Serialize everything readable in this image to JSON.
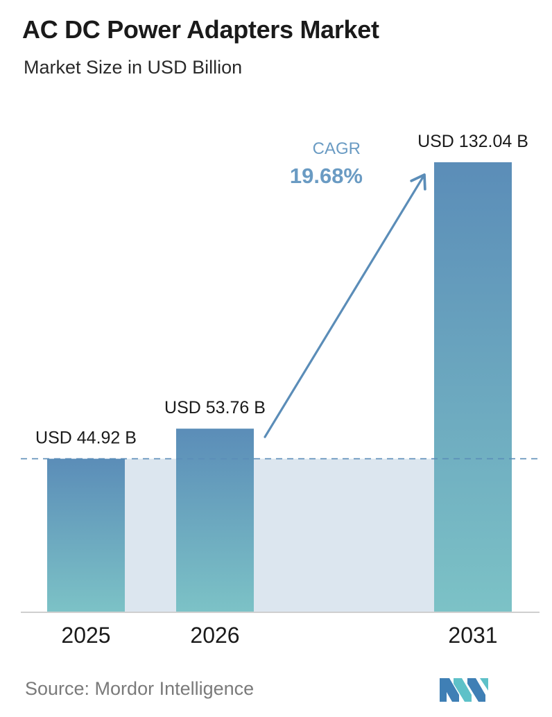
{
  "header": {
    "title": "AC DC Power Adapters Market",
    "subtitle": "Market Size in USD Billion"
  },
  "chart_data": {
    "type": "bar",
    "categories": [
      "2025",
      "2026",
      "2031"
    ],
    "values": [
      44.92,
      53.76,
      132.04
    ],
    "value_labels": [
      "USD 44.92 B",
      "USD 53.76 B",
      "USD 132.04 B"
    ],
    "title": "AC DC Power Adapters Market",
    "subtitle": "Market Size in USD Billion",
    "xlabel": "",
    "ylabel": "",
    "ylim": [
      0,
      132.04
    ],
    "grid": false,
    "legend": "none",
    "annotation": {
      "label": "CAGR",
      "value": "19.68%"
    },
    "colors": {
      "bar_top": "#5b8db8",
      "bar_bottom": "#7cc2c6",
      "band": "#dce6ef",
      "arrow": "#5b8db8",
      "cagr_label": "#6a9bc3",
      "dashed_line": "#5b8db8"
    }
  },
  "footer": {
    "source": "Source:  Mordor Intelligence",
    "logo_icon": "mordor-intelligence-logo"
  }
}
